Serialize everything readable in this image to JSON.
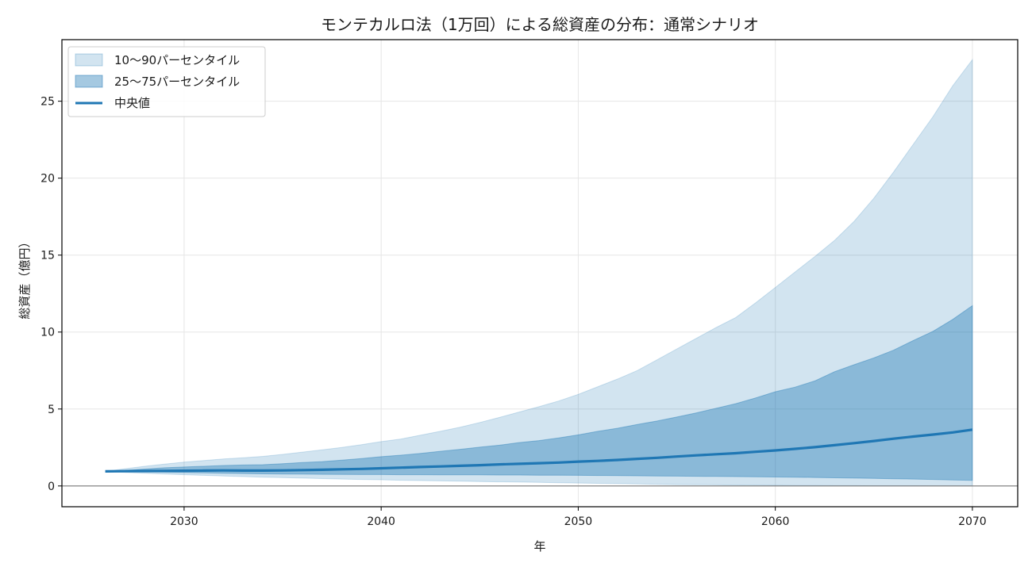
{
  "chart_data": {
    "type": "area",
    "title": "モンテカルロ法（1万回）による総資産の分布：通常シナリオ",
    "xlabel": "年",
    "ylabel": "総資産（億円）",
    "xlim": [
      2023.8,
      2072.3
    ],
    "ylim": [
      -1.35,
      29.0
    ],
    "xticks": [
      2030,
      2040,
      2050,
      2060,
      2070
    ],
    "yticks": [
      0,
      5,
      10,
      15,
      20,
      25
    ],
    "grid": true,
    "legend_position": "top-left",
    "zero_line": true,
    "x": [
      2026,
      2027,
      2028,
      2029,
      2030,
      2031,
      2032,
      2033,
      2034,
      2035,
      2036,
      2037,
      2038,
      2039,
      2040,
      2041,
      2042,
      2043,
      2044,
      2045,
      2046,
      2047,
      2048,
      2049,
      2050,
      2051,
      2052,
      2053,
      2054,
      2055,
      2056,
      2057,
      2058,
      2059,
      2060,
      2061,
      2062,
      2063,
      2064,
      2065,
      2066,
      2067,
      2068,
      2069,
      2070
    ],
    "bands": [
      {
        "name": "10〜90パーセンタイル",
        "color": "#1f77b4",
        "opacity": 0.2,
        "lower": [
          0.95,
          0.88,
          0.83,
          0.78,
          0.73,
          0.69,
          0.65,
          0.61,
          0.57,
          0.54,
          0.51,
          0.48,
          0.45,
          0.42,
          0.4,
          0.37,
          0.35,
          0.33,
          0.31,
          0.29,
          0.27,
          0.25,
          0.23,
          0.21,
          0.19,
          0.17,
          0.15,
          0.13,
          0.11,
          0.09,
          0.08,
          0.07,
          0.06,
          0.05,
          0.04,
          0.03,
          0.03,
          0.02,
          0.02,
          0.01,
          0.01,
          0.01,
          0.0,
          0.0,
          0.0
        ],
        "upper": [
          0.95,
          1.12,
          1.28,
          1.42,
          1.55,
          1.65,
          1.75,
          1.83,
          1.92,
          2.05,
          2.2,
          2.35,
          2.5,
          2.68,
          2.88,
          3.05,
          3.3,
          3.55,
          3.82,
          4.12,
          4.45,
          4.8,
          5.15,
          5.52,
          5.95,
          6.45,
          6.95,
          7.5,
          8.2,
          8.9,
          9.6,
          10.3,
          10.95,
          11.9,
          12.9,
          13.9,
          14.9,
          15.95,
          17.2,
          18.7,
          20.4,
          22.2,
          24.0,
          26.0,
          27.7
        ]
      },
      {
        "name": "25〜75パーセンタイル",
        "color": "#1f77b4",
        "opacity": 0.4,
        "lower": [
          0.95,
          0.93,
          0.91,
          0.89,
          0.87,
          0.85,
          0.83,
          0.81,
          0.79,
          0.78,
          0.77,
          0.76,
          0.75,
          0.74,
          0.74,
          0.73,
          0.73,
          0.72,
          0.72,
          0.72,
          0.71,
          0.71,
          0.7,
          0.7,
          0.69,
          0.68,
          0.67,
          0.66,
          0.65,
          0.64,
          0.63,
          0.62,
          0.61,
          0.6,
          0.58,
          0.57,
          0.55,
          0.53,
          0.51,
          0.49,
          0.47,
          0.45,
          0.42,
          0.39,
          0.36
        ],
        "upper": [
          0.95,
          1.02,
          1.1,
          1.18,
          1.23,
          1.28,
          1.33,
          1.36,
          1.38,
          1.45,
          1.52,
          1.58,
          1.68,
          1.78,
          1.9,
          2.0,
          2.12,
          2.25,
          2.38,
          2.52,
          2.65,
          2.82,
          2.95,
          3.12,
          3.32,
          3.55,
          3.75,
          4.0,
          4.22,
          4.48,
          4.75,
          5.05,
          5.35,
          5.72,
          6.12,
          6.42,
          6.82,
          7.42,
          7.88,
          8.32,
          8.82,
          9.45,
          10.05,
          10.82,
          11.72
        ]
      }
    ],
    "series": [
      {
        "name": "中央値",
        "color": "#1f77b4",
        "values": [
          0.95,
          0.96,
          0.97,
          0.98,
          0.99,
          1.0,
          1.01,
          1.0,
          1.0,
          1.01,
          1.03,
          1.05,
          1.08,
          1.11,
          1.15,
          1.19,
          1.23,
          1.27,
          1.31,
          1.35,
          1.4,
          1.44,
          1.48,
          1.52,
          1.58,
          1.63,
          1.69,
          1.76,
          1.83,
          1.91,
          1.99,
          2.06,
          2.13,
          2.22,
          2.31,
          2.41,
          2.52,
          2.65,
          2.78,
          2.92,
          3.07,
          3.21,
          3.34,
          3.48,
          3.66
        ]
      }
    ]
  }
}
